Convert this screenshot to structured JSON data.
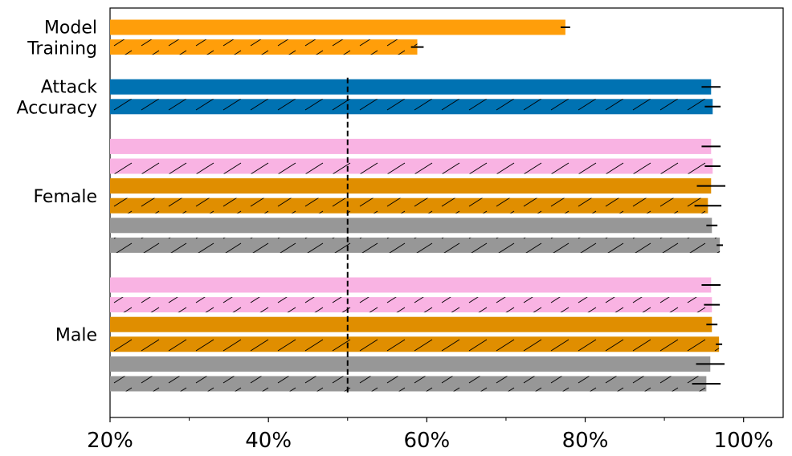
{
  "chart_data": {
    "type": "bar",
    "orientation": "horizontal",
    "xlim": [
      20,
      105
    ],
    "xticks": [
      20,
      40,
      60,
      80,
      100
    ],
    "xtick_labels": [
      "20%",
      "40%",
      "60%",
      "80%",
      "100%"
    ],
    "reference_line": {
      "x": 50,
      "style": "dashed"
    },
    "hatch_pattern": "diagonal",
    "colors": {
      "orange": "#FF9E0A",
      "blue": "#0072B2",
      "pink": "#F9B3E3",
      "dark_orange": "#E08E00",
      "gray": "#979797",
      "error_bar": "#000000"
    },
    "groups": [
      {
        "label": [
          "Model",
          "Training"
        ],
        "bars": [
          {
            "value": 77.5,
            "error": 0.6,
            "color": "orange",
            "hatched": false
          },
          {
            "value": 58.8,
            "error": 0.8,
            "color": "orange",
            "hatched": true
          }
        ]
      },
      {
        "label": [
          "Attack",
          "Accuracy"
        ],
        "bars": [
          {
            "value": 95.9,
            "error": 1.2,
            "color": "blue",
            "hatched": false
          },
          {
            "value": 96.1,
            "error": 1.0,
            "color": "blue",
            "hatched": true
          }
        ]
      },
      {
        "label": [
          "Female"
        ],
        "bars": [
          {
            "value": 95.9,
            "error": 1.2,
            "color": "pink",
            "hatched": false
          },
          {
            "value": 96.1,
            "error": 1.0,
            "color": "pink",
            "hatched": true
          },
          {
            "value": 95.9,
            "error": 1.8,
            "color": "dark_orange",
            "hatched": false
          },
          {
            "value": 95.5,
            "error": 1.7,
            "color": "dark_orange",
            "hatched": true
          },
          {
            "value": 96.0,
            "error": 0.7,
            "color": "gray",
            "hatched": false
          },
          {
            "value": 97.0,
            "error": 0.4,
            "color": "gray",
            "hatched": true
          }
        ]
      },
      {
        "label": [
          "Male"
        ],
        "bars": [
          {
            "value": 95.9,
            "error": 1.2,
            "color": "pink",
            "hatched": false
          },
          {
            "value": 96.0,
            "error": 1.0,
            "color": "pink",
            "hatched": true
          },
          {
            "value": 96.0,
            "error": 0.7,
            "color": "dark_orange",
            "hatched": false
          },
          {
            "value": 96.9,
            "error": 0.4,
            "color": "dark_orange",
            "hatched": true
          },
          {
            "value": 95.8,
            "error": 1.8,
            "color": "gray",
            "hatched": false
          },
          {
            "value": 95.3,
            "error": 1.8,
            "color": "gray",
            "hatched": true
          }
        ]
      }
    ]
  }
}
